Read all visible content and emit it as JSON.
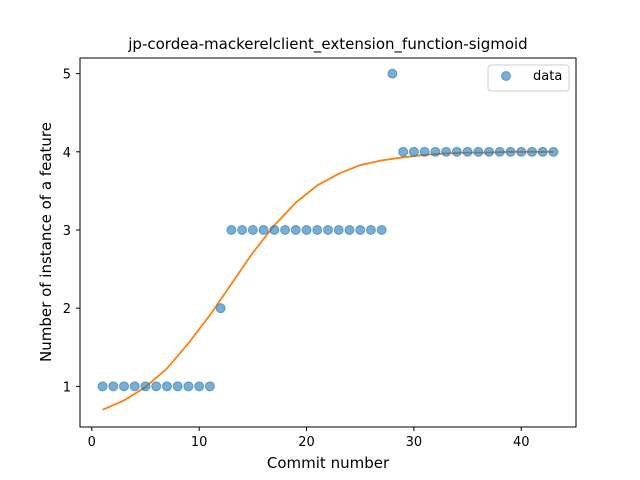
{
  "chart_data": {
    "type": "scatter",
    "title": "jp-cordea-mackerelclient_extension_function-sigmoid",
    "xlabel": "Commit number",
    "ylabel": "Number of instance of a feature",
    "xlim": [
      -1.1,
      45.1
    ],
    "ylim": [
      0.48,
      5.2
    ],
    "xticks": [
      0,
      10,
      20,
      30,
      40
    ],
    "yticks": [
      1,
      2,
      3,
      4,
      5
    ],
    "legend": {
      "position": "top-right",
      "entries": [
        "data"
      ]
    },
    "colors": {
      "data": "#1f77b4",
      "fit": "#ff7f0e"
    },
    "series": [
      {
        "name": "data",
        "kind": "scatter",
        "x": [
          1,
          2,
          3,
          4,
          5,
          6,
          7,
          8,
          9,
          10,
          11,
          12,
          13,
          14,
          15,
          16,
          17,
          18,
          19,
          20,
          21,
          22,
          23,
          24,
          25,
          26,
          27,
          28,
          29,
          30,
          31,
          32,
          33,
          34,
          35,
          36,
          37,
          38,
          39,
          40,
          41,
          42,
          43
        ],
        "y": [
          1,
          1,
          1,
          1,
          1,
          1,
          1,
          1,
          1,
          1,
          1,
          2,
          3,
          3,
          3,
          3,
          3,
          3,
          3,
          3,
          3,
          3,
          3,
          3,
          3,
          3,
          3,
          5,
          4,
          4,
          4,
          4,
          4,
          4,
          4,
          4,
          4,
          4,
          4,
          4,
          4,
          4,
          4
        ]
      },
      {
        "kind": "line",
        "x": [
          1,
          3,
          5,
          7,
          9,
          11,
          13,
          15,
          17,
          19,
          21,
          23,
          25,
          27,
          29,
          31,
          33,
          35,
          37,
          39,
          41,
          43
        ],
        "y": [
          0.7,
          0.82,
          0.99,
          1.23,
          1.55,
          1.91,
          2.31,
          2.71,
          3.06,
          3.35,
          3.57,
          3.72,
          3.83,
          3.89,
          3.93,
          3.96,
          3.98,
          3.99,
          3.99,
          4.0,
          4.0,
          4.0
        ]
      }
    ]
  }
}
